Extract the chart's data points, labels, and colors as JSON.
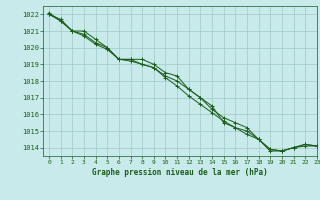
{
  "title": "Graphe pression niveau de la mer (hPa)",
  "bg_color": "#c8eaea",
  "grid_color": "#a0c8c8",
  "line_color": "#1a5c1a",
  "marker_color": "#1a5c1a",
  "xlim": [
    -0.5,
    23
  ],
  "ylim": [
    1013.5,
    1022.5
  ],
  "yticks": [
    1014,
    1015,
    1016,
    1017,
    1018,
    1019,
    1020,
    1021,
    1022
  ],
  "xticks": [
    0,
    1,
    2,
    3,
    4,
    5,
    6,
    7,
    8,
    9,
    10,
    11,
    12,
    13,
    14,
    15,
    16,
    17,
    18,
    19,
    20,
    21,
    22,
    23
  ],
  "series": [
    [
      1022.0,
      1021.7,
      1021.0,
      1021.0,
      1020.5,
      1020.0,
      1019.3,
      1019.3,
      1019.3,
      1019.0,
      1018.5,
      1018.3,
      1017.5,
      1017.0,
      1016.3,
      1015.8,
      1015.5,
      1015.2,
      1014.5,
      1013.8,
      1013.8,
      1014.0,
      1014.1,
      1014.1
    ],
    [
      1022.0,
      1021.6,
      1021.0,
      1020.8,
      1020.3,
      1020.0,
      1019.3,
      1019.3,
      1019.0,
      1018.8,
      1018.3,
      1018.0,
      1017.5,
      1017.0,
      1016.5,
      1015.5,
      1015.2,
      1015.0,
      1014.5,
      1013.9,
      1013.8,
      1014.0,
      1014.2,
      1014.1
    ],
    [
      1022.1,
      1021.6,
      1021.0,
      1020.7,
      1020.2,
      1019.9,
      1019.3,
      1019.2,
      1019.0,
      1018.8,
      1018.2,
      1017.7,
      1017.1,
      1016.6,
      1016.1,
      1015.6,
      1015.2,
      1014.8,
      1014.5,
      1013.9,
      1013.8,
      1014.0,
      1014.2,
      1014.1
    ]
  ]
}
